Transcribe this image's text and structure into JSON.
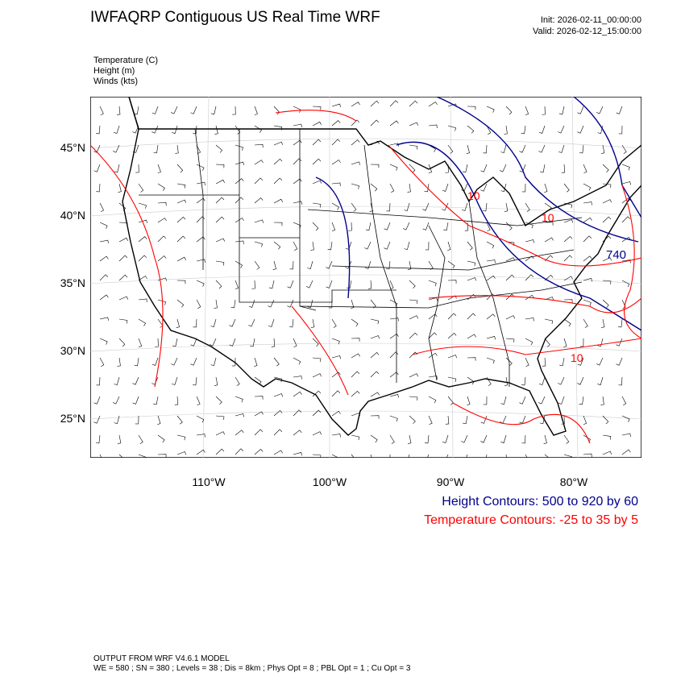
{
  "header": {
    "title": "IWFAQRP Contiguous US Real Time WRF",
    "init": "Init: 2026-02-11_00:00:00",
    "valid": "Valid: 2026-02-12_15:00:00"
  },
  "fields": [
    "Temperature   (C)",
    "Height   (m)",
    "Winds   (kts)"
  ],
  "map": {
    "lat_labels": [
      "45°N",
      "40°N",
      "35°N",
      "30°N",
      "25°N"
    ],
    "lon_labels": [
      "110°W",
      "100°W",
      "90°W",
      "80°W"
    ],
    "contour_labels": [
      {
        "text": "10",
        "kind": "temperature"
      },
      {
        "text": "10",
        "kind": "temperature"
      },
      {
        "text": "740",
        "kind": "height"
      },
      {
        "text": "10",
        "kind": "temperature"
      }
    ],
    "colors": {
      "height": "#00008b",
      "temperature": "#ff0000",
      "boundaries": "#000000",
      "barbs": "#000000"
    }
  },
  "legend": {
    "height": "Height Contours: 500 to 920 by 60",
    "temperature": "Temperature Contours: -25 to 35 by 5"
  },
  "footer": {
    "line1": "OUTPUT FROM WRF V4.6.1 MODEL",
    "line2": "WE = 580 ; SN = 380 ; Levels = 38 ; Dis = 8km ; Phys Opt = 8 ; PBL Opt = 1 ; Cu Opt = 3"
  }
}
